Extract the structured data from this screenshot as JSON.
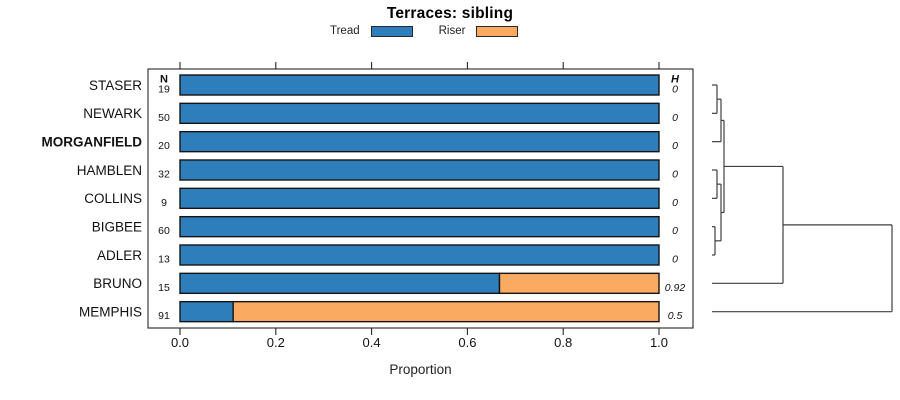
{
  "title": "Terraces: sibling",
  "legend": [
    {
      "label": "Tread",
      "color": "#2E7EBC"
    },
    {
      "label": "Riser",
      "color": "#FAAA61"
    }
  ],
  "chart_data": {
    "type": "bar",
    "orientation": "horizontal-stacked",
    "title": "Terraces: sibling",
    "xlabel": "Proportion",
    "xlim": [
      0,
      1
    ],
    "xticks": [
      0.0,
      0.2,
      0.4,
      0.6,
      0.8,
      1.0
    ],
    "xtick_labels": [
      "0.0",
      "0.2",
      "0.4",
      "0.6",
      "0.8",
      "1.0"
    ],
    "grid": false,
    "legend_position": "top",
    "categories": [
      "STASER",
      "NEWARK",
      "MORGANFIELD",
      "HAMBLEN",
      "COLLINS",
      "BIGBEE",
      "ADLER",
      "BRUNO",
      "MEMPHIS"
    ],
    "highlighted_category": "MORGANFIELD",
    "series": [
      {
        "name": "Tread",
        "color": "#2E7EBC",
        "values": [
          1,
          1,
          1,
          1,
          1,
          1,
          1,
          0.667,
          0.111
        ]
      },
      {
        "name": "Riser",
        "color": "#FAAA61",
        "values": [
          0,
          0,
          0,
          0,
          0,
          0,
          0,
          0.333,
          0.889
        ]
      }
    ],
    "n_header": "N",
    "n_values": [
      19,
      50,
      20,
      32,
      9,
      60,
      13,
      15,
      91
    ],
    "h_header": "H",
    "h_values": [
      "0",
      "0",
      "0",
      "0",
      "0",
      "0",
      "0",
      "0.92",
      "0.5"
    ],
    "dendrogram": {
      "leaves": [
        "STASER",
        "NEWARK",
        "MORGANFIELD",
        "HAMBLEN",
        "COLLINS",
        "BIGBEE",
        "ADLER",
        "BRUNO",
        "MEMPHIS"
      ],
      "merges": [
        {
          "id": "M1",
          "a": "STASER",
          "b": "NEWARK",
          "h": 5
        },
        {
          "id": "M2",
          "a": "M1",
          "b": "MORGANFIELD",
          "h": 9
        },
        {
          "id": "M3",
          "a": "HAMBLEN",
          "b": "COLLINS",
          "h": 5
        },
        {
          "id": "M4",
          "a": "BIGBEE",
          "b": "ADLER",
          "h": 3
        },
        {
          "id": "M5",
          "a": "M3",
          "b": "M4",
          "h": 9
        },
        {
          "id": "M6",
          "a": "M2",
          "b": "M5",
          "h": 12
        },
        {
          "id": "M7",
          "a": "M6",
          "b": "BRUNO",
          "h": 71
        },
        {
          "id": "M8",
          "a": "M7",
          "b": "MEMPHIS",
          "h": 180
        }
      ]
    }
  }
}
